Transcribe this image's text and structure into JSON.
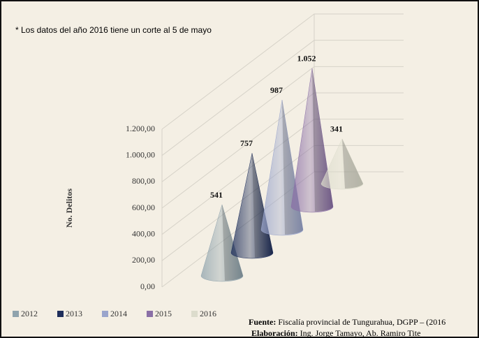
{
  "chart_data": {
    "type": "cone3d",
    "annotation": "* Los datos del año 2016 tiene un corte al 5 de mayo",
    "y_label": "No. Delitos",
    "categories": [
      "2012",
      "2013",
      "2014",
      "2015",
      "2016"
    ],
    "values": [
      541,
      757,
      987,
      1052,
      341
    ],
    "value_labels": [
      "541",
      "757",
      "987",
      "1.052",
      "341"
    ],
    "colors": [
      "#8fa3ad",
      "#1f2f5c",
      "#9aa5cc",
      "#8a6fa6",
      "#dcdccc"
    ],
    "ylim": [
      0,
      1200
    ],
    "yticks": [
      {
        "value": 0,
        "label": "0,00"
      },
      {
        "value": 200,
        "label": "200,00"
      },
      {
        "value": 400,
        "label": "400,00"
      },
      {
        "value": 600,
        "label": "600,00"
      },
      {
        "value": 800,
        "label": "800,00"
      },
      {
        "value": 1000,
        "label": "1.000,00"
      },
      {
        "value": 1200,
        "label": "1.200,00"
      }
    ],
    "grid": true,
    "source": {
      "label": "Fuente:",
      "text": " Fiscalía provincial de Tungurahua, DGPP – (2016"
    },
    "credits": {
      "label": "Elaboración:",
      "text": " Ing. Jorge Tamayo, Ab. Ramiro Tite"
    }
  }
}
